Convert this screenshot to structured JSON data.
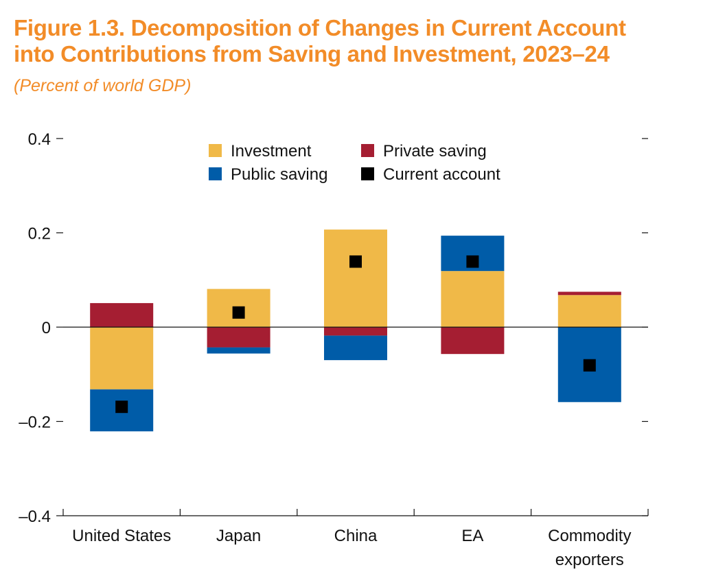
{
  "title_line1": "Figure 1.3. Decomposition of Changes in Current Account",
  "title_line2": "into Contributions from Saving and Investment, 2023–24",
  "subtitle": "(Percent of world GDP)",
  "colors": {
    "title": "#f28c28",
    "investment": "#f0b948",
    "private_saving": "#a51e32",
    "public_saving": "#005ca8",
    "current_account": "#000000"
  },
  "chart_data": {
    "type": "bar",
    "stacked": true,
    "categories": [
      "United States",
      "Japan",
      "China",
      "EA",
      "Commodity exporters"
    ],
    "category_lines": [
      [
        "United States"
      ],
      [
        "Japan"
      ],
      [
        "China"
      ],
      [
        "EA"
      ],
      [
        "Commodity",
        "exporters"
      ]
    ],
    "series": [
      {
        "name": "Investment",
        "color": "#f0b948",
        "values": [
          -0.132,
          0.081,
          0.207,
          0.119,
          0.068
        ]
      },
      {
        "name": "Private saving",
        "color": "#a51e32",
        "values": [
          0.051,
          -0.043,
          -0.018,
          -0.057,
          0.007
        ]
      },
      {
        "name": "Public saving",
        "color": "#005ca8",
        "values": [
          -0.089,
          -0.013,
          -0.052,
          0.075,
          -0.159
        ]
      }
    ],
    "markers": {
      "name": "Current account",
      "color": "#000000",
      "values": [
        -0.169,
        0.031,
        0.139,
        0.139,
        -0.081
      ]
    },
    "yticks": [
      0.4,
      0.2,
      0,
      -0.2,
      -0.4
    ],
    "ytick_labels": [
      "0.4",
      "0.2",
      "0",
      "–0.2",
      "–0.4"
    ],
    "ylim": [
      -0.4,
      0.4
    ],
    "legend": [
      "Investment",
      "Private saving",
      "Public saving",
      "Current account"
    ],
    "legend_position": "top-center",
    "title": "Figure 1.3. Decomposition of Changes in Current Account into Contributions from Saving and Investment, 2023–24",
    "ylabel": "Percent of world GDP"
  }
}
